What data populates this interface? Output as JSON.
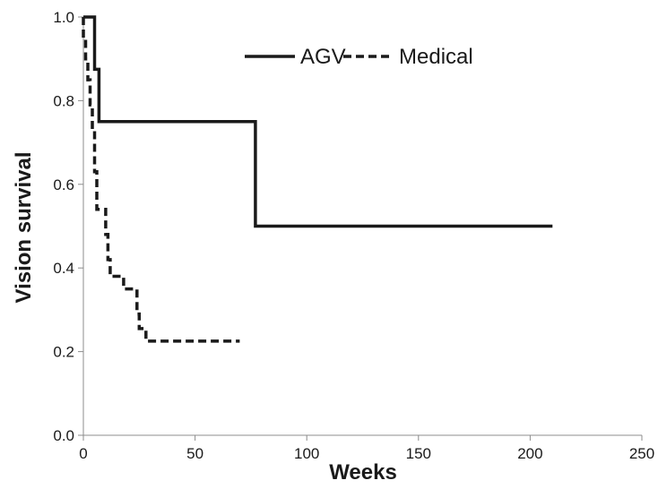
{
  "chart_data": {
    "type": "line",
    "title": "",
    "xlabel": "Weeks",
    "ylabel": "Vision survival",
    "xlim": [
      0,
      250
    ],
    "ylim": [
      0,
      1.0
    ],
    "xticks": [
      0,
      50,
      100,
      150,
      200,
      250
    ],
    "yticks": [
      0.0,
      0.2,
      0.4,
      0.6,
      0.8,
      1.0
    ],
    "xtick_labels": [
      "0",
      "50",
      "100",
      "150",
      "200",
      "250"
    ],
    "ytick_labels": [
      "0.0",
      "0.2",
      "0.4",
      "0.6",
      "0.8",
      "1.0"
    ],
    "grid": false,
    "legend_position": "top-right",
    "step": true,
    "series": [
      {
        "name": "AGV",
        "style": "solid",
        "color": "#1a1a1a",
        "points": [
          [
            0,
            1.0
          ],
          [
            5,
            1.0
          ],
          [
            5,
            0.875
          ],
          [
            7,
            0.875
          ],
          [
            7,
            0.75
          ],
          [
            77,
            0.75
          ],
          [
            77,
            0.5
          ],
          [
            210,
            0.5
          ]
        ]
      },
      {
        "name": "Medical",
        "style": "dashed",
        "color": "#1a1a1a",
        "points": [
          [
            0,
            1.0
          ],
          [
            0,
            0.95
          ],
          [
            1,
            0.95
          ],
          [
            1,
            0.9
          ],
          [
            2,
            0.9
          ],
          [
            2,
            0.85
          ],
          [
            3,
            0.85
          ],
          [
            3,
            0.79
          ],
          [
            4,
            0.79
          ],
          [
            4,
            0.73
          ],
          [
            5,
            0.73
          ],
          [
            5,
            0.63
          ],
          [
            6,
            0.63
          ],
          [
            6,
            0.54
          ],
          [
            10,
            0.54
          ],
          [
            10,
            0.48
          ],
          [
            11,
            0.48
          ],
          [
            11,
            0.42
          ],
          [
            12,
            0.42
          ],
          [
            12,
            0.38
          ],
          [
            18,
            0.38
          ],
          [
            18,
            0.35
          ],
          [
            24,
            0.35
          ],
          [
            24,
            0.29
          ],
          [
            25,
            0.29
          ],
          [
            25,
            0.255
          ],
          [
            28,
            0.255
          ],
          [
            28,
            0.225
          ],
          [
            70,
            0.225
          ]
        ]
      }
    ]
  }
}
